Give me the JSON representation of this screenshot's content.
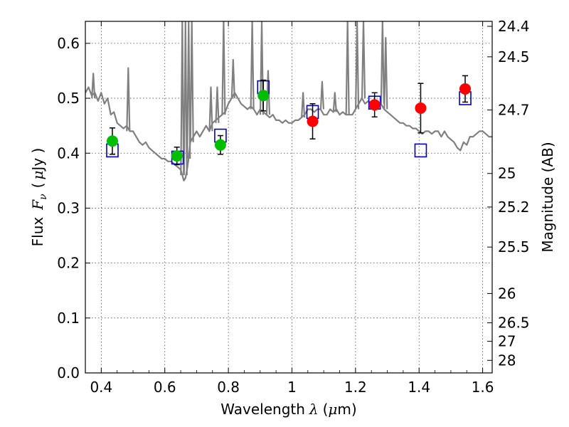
{
  "chart_data": {
    "type": "scatter",
    "title": "",
    "xlabel": "Wavelength",
    "xlabel_symbol": "λ",
    "xlabel_unit_open": "(",
    "xlabel_unit_mu": "μ",
    "xlabel_unit_rest": "m)",
    "ylabel": "Flux",
    "ylabel_symbol": "F",
    "ylabel_symbol_sub": "ν",
    "ylabel_unit_open": "(",
    "ylabel_unit_mu": "μ",
    "ylabel_unit_rest": "Jy )",
    "y2label": "Magnitude (AB)",
    "xlim": [
      0.35,
      1.63
    ],
    "ylim": [
      0.0,
      0.64
    ],
    "grid": true,
    "x_ticks": [
      {
        "v": 0.4,
        "label": "0.4"
      },
      {
        "v": 0.6,
        "label": "0.6"
      },
      {
        "v": 0.8,
        "label": "0.8"
      },
      {
        "v": 1.0,
        "label": "1"
      },
      {
        "v": 1.2,
        "label": "1.2"
      },
      {
        "v": 1.4,
        "label": "1.4"
      },
      {
        "v": 1.6,
        "label": "1.6"
      }
    ],
    "y_ticks": [
      {
        "v": 0.0,
        "label": "0.0"
      },
      {
        "v": 0.1,
        "label": "0.1"
      },
      {
        "v": 0.2,
        "label": "0.2"
      },
      {
        "v": 0.3,
        "label": "0.3"
      },
      {
        "v": 0.4,
        "label": "0.4"
      },
      {
        "v": 0.5,
        "label": "0.5"
      },
      {
        "v": 0.6,
        "label": "0.6"
      }
    ],
    "y2_ticks": [
      {
        "mag": 24.4,
        "label": "24.4"
      },
      {
        "mag": 24.5,
        "label": "24.5"
      },
      {
        "mag": 24.7,
        "label": "24.7"
      },
      {
        "mag": 25.0,
        "label": "25"
      },
      {
        "mag": 25.2,
        "label": "25.2"
      },
      {
        "mag": 25.5,
        "label": "25.5"
      },
      {
        "mag": 26.0,
        "label": "26"
      },
      {
        "mag": 26.5,
        "label": "26.5"
      },
      {
        "mag": 27.0,
        "label": "27"
      },
      {
        "mag": 28.0,
        "label": "28"
      }
    ],
    "series": [
      {
        "kind": "line",
        "color": "#808080",
        "points": [
          [
            0.35,
            0.51
          ],
          [
            0.36,
            0.52
          ],
          [
            0.37,
            0.505
          ],
          [
            0.38,
            0.51
          ],
          [
            0.39,
            0.495
          ],
          [
            0.4,
            0.51
          ],
          [
            0.41,
            0.49
          ],
          [
            0.42,
            0.5
          ],
          [
            0.43,
            0.47
          ],
          [
            0.44,
            0.475
          ],
          [
            0.45,
            0.455
          ],
          [
            0.46,
            0.45
          ],
          [
            0.47,
            0.445
          ],
          [
            0.48,
            0.45
          ],
          [
            0.49,
            0.44
          ],
          [
            0.5,
            0.44
          ],
          [
            0.51,
            0.43
          ],
          [
            0.52,
            0.42
          ],
          [
            0.53,
            0.415
          ],
          [
            0.54,
            0.42
          ],
          [
            0.55,
            0.41
          ],
          [
            0.56,
            0.405
          ],
          [
            0.57,
            0.4
          ],
          [
            0.58,
            0.395
          ],
          [
            0.59,
            0.39
          ],
          [
            0.6,
            0.39
          ],
          [
            0.61,
            0.385
          ],
          [
            0.62,
            0.385
          ],
          [
            0.63,
            0.38
          ],
          [
            0.64,
            0.375
          ],
          [
            0.65,
            0.37
          ],
          [
            0.655,
            0.36
          ],
          [
            0.66,
            0.35
          ],
          [
            0.665,
            0.355
          ],
          [
            0.67,
            0.37
          ],
          [
            0.675,
            0.39
          ],
          [
            0.68,
            0.42
          ],
          [
            0.69,
            0.43
          ],
          [
            0.7,
            0.44
          ],
          [
            0.71,
            0.43
          ],
          [
            0.72,
            0.44
          ],
          [
            0.73,
            0.45
          ],
          [
            0.74,
            0.44
          ],
          [
            0.75,
            0.455
          ],
          [
            0.76,
            0.46
          ],
          [
            0.77,
            0.465
          ],
          [
            0.78,
            0.47
          ],
          [
            0.79,
            0.475
          ],
          [
            0.8,
            0.49
          ],
          [
            0.81,
            0.5
          ],
          [
            0.82,
            0.51
          ],
          [
            0.83,
            0.5
          ],
          [
            0.84,
            0.49
          ],
          [
            0.85,
            0.485
          ],
          [
            0.86,
            0.48
          ],
          [
            0.87,
            0.485
          ],
          [
            0.88,
            0.48
          ],
          [
            0.89,
            0.47
          ],
          [
            0.9,
            0.48
          ],
          [
            0.91,
            0.475
          ],
          [
            0.92,
            0.47
          ],
          [
            0.93,
            0.465
          ],
          [
            0.94,
            0.47
          ],
          [
            0.95,
            0.46
          ],
          [
            0.96,
            0.46
          ],
          [
            0.97,
            0.455
          ],
          [
            0.98,
            0.46
          ],
          [
            0.99,
            0.455
          ],
          [
            1.0,
            0.455
          ],
          [
            1.01,
            0.46
          ],
          [
            1.02,
            0.46
          ],
          [
            1.03,
            0.465
          ],
          [
            1.04,
            0.47
          ],
          [
            1.05,
            0.48
          ],
          [
            1.06,
            0.48
          ],
          [
            1.07,
            0.475
          ],
          [
            1.08,
            0.48
          ],
          [
            1.09,
            0.48
          ],
          [
            1.1,
            0.47
          ],
          [
            1.11,
            0.47
          ],
          [
            1.12,
            0.48
          ],
          [
            1.13,
            0.475
          ],
          [
            1.14,
            0.48
          ],
          [
            1.15,
            0.47
          ],
          [
            1.16,
            0.475
          ],
          [
            1.17,
            0.47
          ],
          [
            1.18,
            0.47
          ],
          [
            1.19,
            0.47
          ],
          [
            1.2,
            0.48
          ],
          [
            1.21,
            0.49
          ],
          [
            1.22,
            0.5
          ],
          [
            1.23,
            0.49
          ],
          [
            1.24,
            0.495
          ],
          [
            1.25,
            0.49
          ],
          [
            1.26,
            0.49
          ],
          [
            1.27,
            0.485
          ],
          [
            1.28,
            0.49
          ],
          [
            1.29,
            0.48
          ],
          [
            1.3,
            0.475
          ],
          [
            1.31,
            0.47
          ],
          [
            1.32,
            0.465
          ],
          [
            1.33,
            0.46
          ],
          [
            1.34,
            0.455
          ],
          [
            1.35,
            0.455
          ],
          [
            1.36,
            0.45
          ],
          [
            1.37,
            0.45
          ],
          [
            1.38,
            0.445
          ],
          [
            1.39,
            0.445
          ],
          [
            1.4,
            0.44
          ],
          [
            1.41,
            0.435
          ],
          [
            1.42,
            0.44
          ],
          [
            1.43,
            0.44
          ],
          [
            1.44,
            0.435
          ],
          [
            1.45,
            0.44
          ],
          [
            1.46,
            0.44
          ],
          [
            1.47,
            0.43
          ],
          [
            1.48,
            0.44
          ],
          [
            1.49,
            0.43
          ],
          [
            1.5,
            0.425
          ],
          [
            1.51,
            0.42
          ],
          [
            1.52,
            0.41
          ],
          [
            1.53,
            0.405
          ],
          [
            1.54,
            0.42
          ],
          [
            1.55,
            0.415
          ],
          [
            1.56,
            0.43
          ],
          [
            1.57,
            0.43
          ],
          [
            1.58,
            0.435
          ],
          [
            1.59,
            0.44
          ],
          [
            1.6,
            0.44
          ],
          [
            1.61,
            0.435
          ],
          [
            1.62,
            0.43
          ],
          [
            1.63,
            0.43
          ]
        ],
        "spikes": [
          [
            0.375,
            0.5,
            0.545
          ],
          [
            0.485,
            0.44,
            0.555
          ],
          [
            0.655,
            0.36,
            0.64
          ],
          [
            0.665,
            0.36,
            0.64
          ],
          [
            0.675,
            0.39,
            0.64
          ],
          [
            0.685,
            0.42,
            0.64
          ],
          [
            0.745,
            0.44,
            0.52
          ],
          [
            0.765,
            0.455,
            0.52
          ],
          [
            0.785,
            0.47,
            0.64
          ],
          [
            0.815,
            0.5,
            0.57
          ],
          [
            0.875,
            0.48,
            0.64
          ],
          [
            0.905,
            0.47,
            0.64
          ],
          [
            0.925,
            0.47,
            0.55
          ],
          [
            1.035,
            0.465,
            0.51
          ],
          [
            1.095,
            0.48,
            0.53
          ],
          [
            1.135,
            0.475,
            0.51
          ],
          [
            1.175,
            0.47,
            0.64
          ],
          [
            1.205,
            0.48,
            0.64
          ],
          [
            1.225,
            0.5,
            0.64
          ],
          [
            1.285,
            0.49,
            0.64
          ],
          [
            1.295,
            0.48,
            0.61
          ]
        ]
      },
      {
        "kind": "points",
        "marker": "circle",
        "color": "#00bf00",
        "points": [
          {
            "x": 0.435,
            "y": 0.422,
            "yerr": 0.024
          },
          {
            "x": 0.638,
            "y": 0.395,
            "yerr": 0.016
          },
          {
            "x": 0.775,
            "y": 0.415,
            "yerr": 0.017
          },
          {
            "x": 0.91,
            "y": 0.505,
            "yerr": 0.028
          }
        ]
      },
      {
        "kind": "points",
        "marker": "circle",
        "color": "#ff0000",
        "points": [
          {
            "x": 1.065,
            "y": 0.458,
            "yerr": 0.032
          },
          {
            "x": 1.26,
            "y": 0.488,
            "yerr": 0.022
          },
          {
            "x": 1.405,
            "y": 0.482,
            "yerr": 0.045
          },
          {
            "x": 1.545,
            "y": 0.517,
            "yerr": 0.024
          }
        ]
      },
      {
        "kind": "points",
        "marker": "square-open",
        "color": "#0000cc",
        "points": [
          {
            "x": 0.435,
            "y": 0.405
          },
          {
            "x": 0.64,
            "y": 0.392
          },
          {
            "x": 0.775,
            "y": 0.432
          },
          {
            "x": 0.91,
            "y": 0.52
          },
          {
            "x": 1.065,
            "y": 0.475
          },
          {
            "x": 1.26,
            "y": 0.492
          },
          {
            "x": 1.405,
            "y": 0.405
          },
          {
            "x": 1.545,
            "y": 0.5
          }
        ]
      }
    ]
  }
}
